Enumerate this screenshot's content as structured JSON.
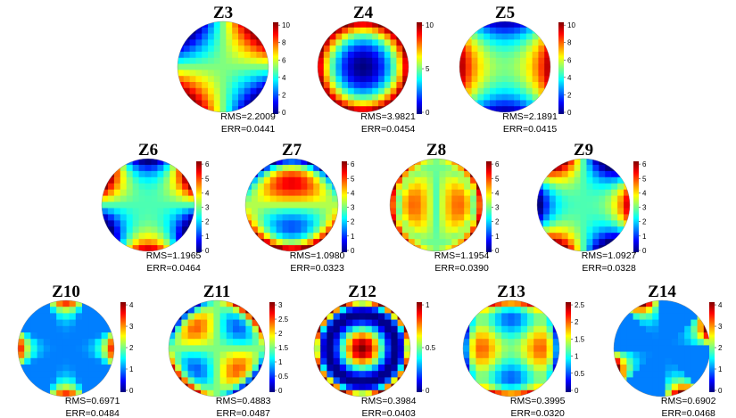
{
  "colormap": [
    "#00007f",
    "#0000ff",
    "#007fff",
    "#00ffff",
    "#7fff7f",
    "#ffff00",
    "#ff7f00",
    "#ff0000",
    "#7f0000"
  ],
  "panels": [
    {
      "title": "Z3",
      "rms": "RMS=2.2009",
      "err": "ERR=0.0441",
      "ticks": [
        "0",
        "2",
        "4",
        "6",
        "8",
        "10"
      ]
    },
    {
      "title": "Z4",
      "rms": "RMS=3.9821",
      "err": "ERR=0.0454",
      "ticks": [
        "0",
        "5",
        "10"
      ]
    },
    {
      "title": "Z5",
      "rms": "RMS=2.1891",
      "err": "ERR=0.0415",
      "ticks": [
        "0",
        "2",
        "4",
        "6",
        "8",
        "10"
      ]
    },
    {
      "title": "Z6",
      "rms": "RMS=1.1965",
      "err": "ERR=0.0464",
      "ticks": [
        "0",
        "1",
        "2",
        "3",
        "4",
        "5",
        "6"
      ]
    },
    {
      "title": "Z7",
      "rms": "RMS=1.0980",
      "err": "ERR=0.0323",
      "ticks": [
        "0",
        "1",
        "2",
        "3",
        "4",
        "5",
        "6"
      ]
    },
    {
      "title": "Z8",
      "rms": "RMS=1.1954",
      "err": "ERR=0.0390",
      "ticks": [
        "0",
        "1",
        "2",
        "3",
        "4",
        "5",
        "6"
      ]
    },
    {
      "title": "Z9",
      "rms": "RMS=1.0927",
      "err": "ERR=0.0328",
      "ticks": [
        "0",
        "1",
        "2",
        "3",
        "4",
        "5",
        "6"
      ]
    },
    {
      "title": "Z10",
      "rms": "RMS=0.6971",
      "err": "ERR=0.0484",
      "ticks": [
        "0",
        "1",
        "2",
        "3",
        "4"
      ]
    },
    {
      "title": "Z11",
      "rms": "RMS=0.4883",
      "err": "ERR=0.0487",
      "ticks": [
        "0",
        "0.5",
        "1",
        "1.5",
        "2",
        "2.5",
        "3"
      ]
    },
    {
      "title": "Z12",
      "rms": "RMS=0.3984",
      "err": "ERR=0.0403",
      "ticks": [
        "0",
        "0.5",
        "1"
      ]
    },
    {
      "title": "Z13",
      "rms": "RMS=0.3995",
      "err": "ERR=0.0320",
      "ticks": [
        "0",
        "0.5",
        "1",
        "1.5",
        "2",
        "2.5"
      ]
    },
    {
      "title": "Z14",
      "rms": "RMS=0.6902",
      "err": "ERR=0.0468",
      "ticks": [
        "0",
        "1",
        "2",
        "3",
        "4"
      ]
    }
  ]
}
